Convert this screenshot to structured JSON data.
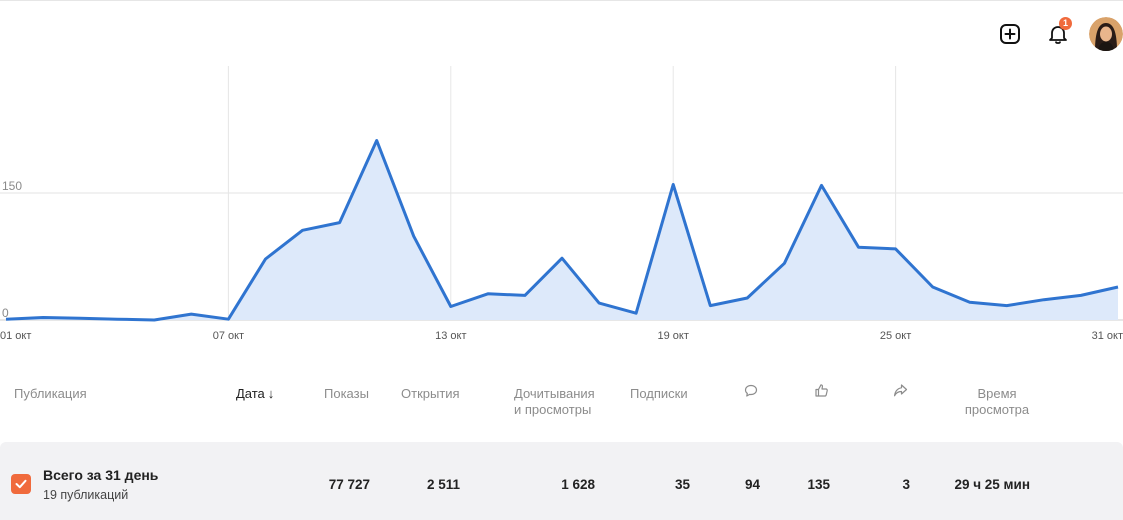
{
  "header": {
    "notification_count": "1",
    "icons": [
      "plus-square-icon",
      "bell-icon",
      "avatar"
    ]
  },
  "chart_data": {
    "type": "area",
    "x_ticks": [
      "01 окт",
      "07 окт",
      "13 окт",
      "19 окт",
      "25 окт",
      "31 окт"
    ],
    "y_ticks": [
      "0",
      "150"
    ],
    "ylim": [
      0,
      300
    ],
    "x": [
      "01 окт",
      "02 окт",
      "03 окт",
      "04 окт",
      "05 окт",
      "06 окт",
      "07 окт",
      "08 окт",
      "09 окт",
      "10 окт",
      "11 окт",
      "12 окт",
      "13 окт",
      "14 окт",
      "15 окт",
      "16 окт",
      "17 окт",
      "18 окт",
      "19 окт",
      "20 окт",
      "21 окт",
      "22 окт",
      "23 окт",
      "24 окт",
      "25 окт",
      "26 окт",
      "27 окт",
      "28 окт",
      "29 окт",
      "30 окт",
      "31 окт"
    ],
    "values": [
      1,
      3,
      2,
      1,
      0,
      7,
      1,
      72,
      106,
      115,
      212,
      99,
      16,
      31,
      29,
      73,
      20,
      8,
      160,
      17,
      26,
      67,
      159,
      86,
      84,
      39,
      21,
      17,
      24,
      29,
      39
    ],
    "line_color": "#2f74d0",
    "fill_color": "#dde9fa",
    "grid": true
  },
  "table": {
    "columns": {
      "publication": "Публикация",
      "date": "Дата",
      "date_sort": "↓",
      "views": "Показы",
      "opens": "Открытия",
      "reads_1": "Дочитывания",
      "reads_2": "и просмотры",
      "subs": "Подписки",
      "time_1": "Время",
      "time_2": "просмотра"
    },
    "total": {
      "title": "Всего за 31 день",
      "subtitle": "19 публикаций",
      "views": "77 727",
      "opens": "2 511",
      "reads": "1 628",
      "subs": "35",
      "comments": "94",
      "likes": "135",
      "reposts": "3",
      "time": "29 ч 25 мин"
    }
  },
  "colors": {
    "accent": "#f06a3c",
    "row_bg": "#f2f2f4"
  }
}
